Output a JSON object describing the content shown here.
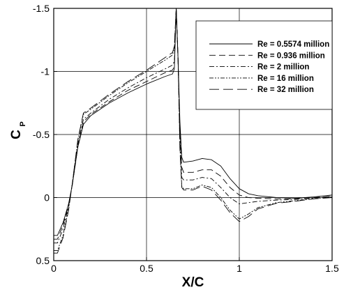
{
  "chart_data": {
    "type": "line",
    "title": "",
    "xlabel": "X/C",
    "ylabel_main": "C",
    "ylabel_sub": "P",
    "xlim": [
      0,
      1.5
    ],
    "ylim": [
      -1.5,
      0.5
    ],
    "y_inverted": true,
    "x_ticks": [
      0,
      0.5,
      1,
      1.5
    ],
    "x_tick_labels": [
      "0",
      "0.5",
      "1",
      "1.5"
    ],
    "y_ticks": [
      -1.5,
      -1,
      -0.5,
      0,
      0.5
    ],
    "y_tick_labels": [
      "-1.5",
      "-1",
      "-0.5",
      "0",
      "0.5"
    ],
    "grid": true,
    "legend_position": "top-right",
    "series": [
      {
        "name": "Re = 0.5574 million",
        "dash": "",
        "points": [
          [
            0.0,
            0.3
          ],
          [
            0.02,
            0.3
          ],
          [
            0.05,
            0.2
          ],
          [
            0.08,
            0.05
          ],
          [
            0.1,
            -0.1
          ],
          [
            0.13,
            -0.4
          ],
          [
            0.16,
            -0.58
          ],
          [
            0.2,
            -0.65
          ],
          [
            0.3,
            -0.75
          ],
          [
            0.4,
            -0.83
          ],
          [
            0.5,
            -0.9
          ],
          [
            0.6,
            -0.96
          ],
          [
            0.64,
            -0.98
          ],
          [
            0.65,
            -1.02
          ],
          [
            0.66,
            -1.5
          ],
          [
            0.67,
            -1.1
          ],
          [
            0.68,
            -0.6
          ],
          [
            0.69,
            -0.32
          ],
          [
            0.7,
            -0.28
          ],
          [
            0.75,
            -0.29
          ],
          [
            0.8,
            -0.31
          ],
          [
            0.85,
            -0.3
          ],
          [
            0.9,
            -0.25
          ],
          [
            0.95,
            -0.15
          ],
          [
            1.0,
            -0.07
          ],
          [
            1.05,
            -0.03
          ],
          [
            1.1,
            -0.015
          ],
          [
            1.2,
            0.0
          ],
          [
            1.3,
            0.005
          ],
          [
            1.4,
            -0.005
          ],
          [
            1.5,
            -0.02
          ]
        ]
      },
      {
        "name": "Re = 0.936 million",
        "dash": "9,5",
        "points": [
          [
            0.0,
            0.33
          ],
          [
            0.02,
            0.33
          ],
          [
            0.05,
            0.22
          ],
          [
            0.08,
            0.06
          ],
          [
            0.1,
            -0.1
          ],
          [
            0.13,
            -0.4
          ],
          [
            0.16,
            -0.6
          ],
          [
            0.2,
            -0.66
          ],
          [
            0.3,
            -0.76
          ],
          [
            0.4,
            -0.85
          ],
          [
            0.5,
            -0.92
          ],
          [
            0.6,
            -0.99
          ],
          [
            0.64,
            -1.01
          ],
          [
            0.65,
            -1.04
          ],
          [
            0.66,
            -1.5
          ],
          [
            0.67,
            -1.1
          ],
          [
            0.68,
            -0.55
          ],
          [
            0.69,
            -0.24
          ],
          [
            0.7,
            -0.2
          ],
          [
            0.75,
            -0.2
          ],
          [
            0.8,
            -0.22
          ],
          [
            0.85,
            -0.22
          ],
          [
            0.9,
            -0.17
          ],
          [
            0.95,
            -0.08
          ],
          [
            1.0,
            -0.02
          ],
          [
            1.05,
            0.0
          ],
          [
            1.1,
            0.005
          ],
          [
            1.2,
            0.01
          ],
          [
            1.3,
            0.01
          ],
          [
            1.4,
            0.0
          ],
          [
            1.5,
            -0.01
          ]
        ]
      },
      {
        "name": "Re = 2 million",
        "dash": "7,3,2,3",
        "points": [
          [
            0.0,
            0.36
          ],
          [
            0.02,
            0.36
          ],
          [
            0.05,
            0.25
          ],
          [
            0.08,
            0.07
          ],
          [
            0.1,
            -0.1
          ],
          [
            0.13,
            -0.42
          ],
          [
            0.16,
            -0.62
          ],
          [
            0.2,
            -0.67
          ],
          [
            0.3,
            -0.78
          ],
          [
            0.4,
            -0.87
          ],
          [
            0.5,
            -0.95
          ],
          [
            0.6,
            -1.02
          ],
          [
            0.64,
            -1.05
          ],
          [
            0.65,
            -1.08
          ],
          [
            0.66,
            -1.5
          ],
          [
            0.67,
            -1.1
          ],
          [
            0.68,
            -0.5
          ],
          [
            0.69,
            -0.16
          ],
          [
            0.7,
            -0.14
          ],
          [
            0.75,
            -0.14
          ],
          [
            0.8,
            -0.16
          ],
          [
            0.85,
            -0.15
          ],
          [
            0.9,
            -0.08
          ],
          [
            0.95,
            0.0
          ],
          [
            1.0,
            0.05
          ],
          [
            1.05,
            0.04
          ],
          [
            1.1,
            0.03
          ],
          [
            1.2,
            0.02
          ],
          [
            1.3,
            0.015
          ],
          [
            1.4,
            0.005
          ],
          [
            1.5,
            -0.01
          ]
        ]
      },
      {
        "name": "Re = 16 million",
        "dash": "6,2,2,2,2,2",
        "points": [
          [
            0.0,
            0.42
          ],
          [
            0.02,
            0.42
          ],
          [
            0.05,
            0.3
          ],
          [
            0.08,
            0.09
          ],
          [
            0.1,
            -0.11
          ],
          [
            0.13,
            -0.45
          ],
          [
            0.16,
            -0.66
          ],
          [
            0.2,
            -0.7
          ],
          [
            0.3,
            -0.81
          ],
          [
            0.4,
            -0.91
          ],
          [
            0.5,
            -1.0
          ],
          [
            0.6,
            -1.09
          ],
          [
            0.64,
            -1.13
          ],
          [
            0.65,
            -1.18
          ],
          [
            0.66,
            -1.5
          ],
          [
            0.67,
            -1.1
          ],
          [
            0.68,
            -0.4
          ],
          [
            0.69,
            -0.09
          ],
          [
            0.7,
            -0.07
          ],
          [
            0.75,
            -0.07
          ],
          [
            0.8,
            -0.1
          ],
          [
            0.85,
            -0.08
          ],
          [
            0.9,
            0.0
          ],
          [
            0.95,
            0.1
          ],
          [
            1.0,
            0.17
          ],
          [
            1.05,
            0.13
          ],
          [
            1.1,
            0.08
          ],
          [
            1.2,
            0.04
          ],
          [
            1.3,
            0.025
          ],
          [
            1.4,
            0.01
          ],
          [
            1.5,
            -0.005
          ]
        ]
      },
      {
        "name": "Re = 32 million",
        "dash": "14,6",
        "points": [
          [
            0.0,
            0.44
          ],
          [
            0.02,
            0.44
          ],
          [
            0.05,
            0.32
          ],
          [
            0.08,
            0.1
          ],
          [
            0.1,
            -0.11
          ],
          [
            0.13,
            -0.46
          ],
          [
            0.16,
            -0.67
          ],
          [
            0.2,
            -0.71
          ],
          [
            0.3,
            -0.82
          ],
          [
            0.4,
            -0.92
          ],
          [
            0.5,
            -1.01
          ],
          [
            0.6,
            -1.11
          ],
          [
            0.64,
            -1.15
          ],
          [
            0.65,
            -1.2
          ],
          [
            0.66,
            -1.5
          ],
          [
            0.67,
            -1.1
          ],
          [
            0.68,
            -0.38
          ],
          [
            0.69,
            -0.08
          ],
          [
            0.7,
            -0.06
          ],
          [
            0.75,
            -0.06
          ],
          [
            0.8,
            -0.09
          ],
          [
            0.85,
            -0.06
          ],
          [
            0.9,
            0.02
          ],
          [
            0.95,
            0.12
          ],
          [
            1.0,
            0.19
          ],
          [
            1.05,
            0.15
          ],
          [
            1.1,
            0.09
          ],
          [
            1.2,
            0.045
          ],
          [
            1.3,
            0.03
          ],
          [
            1.4,
            0.01
          ],
          [
            1.5,
            0.0
          ]
        ]
      }
    ]
  }
}
